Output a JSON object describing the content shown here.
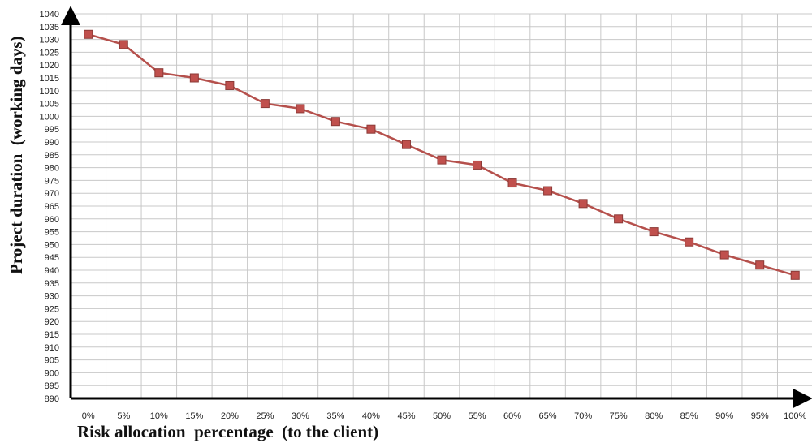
{
  "chart_data": {
    "type": "line",
    "title": "",
    "xlabel": "Risk allocation  percentage  (to the client)",
    "ylabel": "Project duration  (working days)",
    "categories": [
      "0%",
      "5%",
      "10%",
      "15%",
      "20%",
      "25%",
      "30%",
      "35%",
      "40%",
      "45%",
      "50%",
      "55%",
      "60%",
      "65%",
      "70%",
      "75%",
      "80%",
      "85%",
      "90%",
      "95%",
      "100%"
    ],
    "series": [
      {
        "values": [
          1032,
          1028,
          1017,
          1015,
          1012,
          1005,
          1003,
          998,
          995,
          989,
          983,
          981,
          974,
          971,
          966,
          960,
          955,
          951,
          946,
          942,
          938
        ]
      }
    ],
    "ylim": [
      890,
      1040
    ],
    "ytick_step": 5,
    "grid": true,
    "legend": "none",
    "colors": {
      "line": "#b5504c",
      "marker": "#c0504d",
      "marker_edge": "#8c3a37",
      "grid": "#c8c8c8",
      "axis": "#000000"
    }
  }
}
